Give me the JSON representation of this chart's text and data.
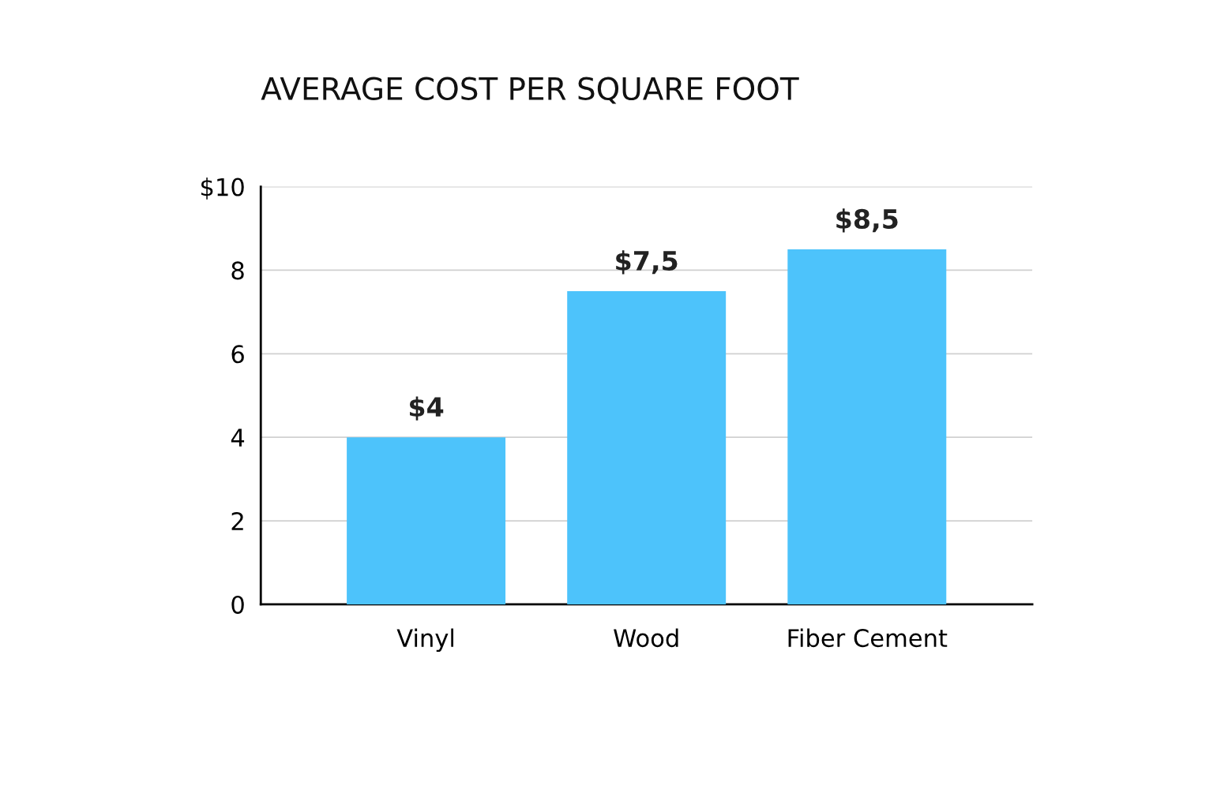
{
  "chart_data": {
    "type": "bar",
    "title": "AVERAGE COST PER SQUARE FOOT",
    "categories": [
      "Vinyl",
      "Wood",
      "Fiber Cement"
    ],
    "values": [
      4,
      7.5,
      8.5
    ],
    "value_labels": [
      "$4",
      "$7,5",
      "$8,5"
    ],
    "color": "#4dc3fb",
    "ylim": [
      0,
      10
    ],
    "yticks": [
      0,
      2,
      4,
      6,
      8,
      {
        "value": 10,
        "label": "$10"
      }
    ],
    "grid": "y",
    "legend": false
  }
}
